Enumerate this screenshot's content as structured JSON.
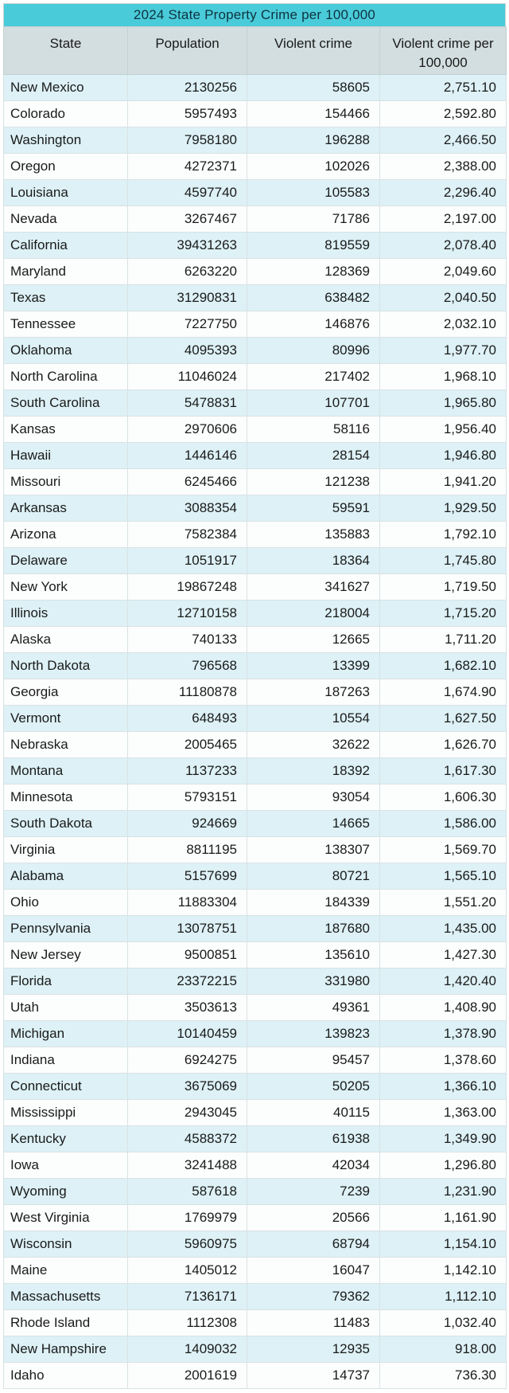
{
  "title": "2024 State Property Crime per 100,000",
  "columns": [
    "State",
    "Population",
    "Violent crime",
    "Violent crime per 100,000"
  ],
  "colors": {
    "title_bg": "#4acbd9",
    "title_text": "#0e3340",
    "header_bg": "#d2dedf",
    "row_alt_bg": "#ddf1f6",
    "row_bg": "#fcfdfd",
    "grid_line": "#d9e2e4",
    "text": "#1a1a1a"
  },
  "chart_data": {
    "type": "table",
    "title": "2024 State Property Crime per 100,000",
    "columns": [
      "State",
      "Population",
      "Violent crime",
      "Violent crime per 100,000"
    ],
    "rows": [
      [
        "New Mexico",
        2130256,
        58605,
        "2,751.10"
      ],
      [
        "Colorado",
        5957493,
        154466,
        "2,592.80"
      ],
      [
        "Washington",
        7958180,
        196288,
        "2,466.50"
      ],
      [
        "Oregon",
        4272371,
        102026,
        "2,388.00"
      ],
      [
        "Louisiana",
        4597740,
        105583,
        "2,296.40"
      ],
      [
        "Nevada",
        3267467,
        71786,
        "2,197.00"
      ],
      [
        "California",
        39431263,
        819559,
        "2,078.40"
      ],
      [
        "Maryland",
        6263220,
        128369,
        "2,049.60"
      ],
      [
        "Texas",
        31290831,
        638482,
        "2,040.50"
      ],
      [
        "Tennessee",
        7227750,
        146876,
        "2,032.10"
      ],
      [
        "Oklahoma",
        4095393,
        80996,
        "1,977.70"
      ],
      [
        "North Carolina",
        11046024,
        217402,
        "1,968.10"
      ],
      [
        "South Carolina",
        5478831,
        107701,
        "1,965.80"
      ],
      [
        "Kansas",
        2970606,
        58116,
        "1,956.40"
      ],
      [
        "Hawaii",
        1446146,
        28154,
        "1,946.80"
      ],
      [
        "Missouri",
        6245466,
        121238,
        "1,941.20"
      ],
      [
        "Arkansas",
        3088354,
        59591,
        "1,929.50"
      ],
      [
        "Arizona",
        7582384,
        135883,
        "1,792.10"
      ],
      [
        "Delaware",
        1051917,
        18364,
        "1,745.80"
      ],
      [
        "New York",
        19867248,
        341627,
        "1,719.50"
      ],
      [
        "Illinois",
        12710158,
        218004,
        "1,715.20"
      ],
      [
        "Alaska",
        740133,
        12665,
        "1,711.20"
      ],
      [
        "North Dakota",
        796568,
        13399,
        "1,682.10"
      ],
      [
        "Georgia",
        11180878,
        187263,
        "1,674.90"
      ],
      [
        "Vermont",
        648493,
        10554,
        "1,627.50"
      ],
      [
        "Nebraska",
        2005465,
        32622,
        "1,626.70"
      ],
      [
        "Montana",
        1137233,
        18392,
        "1,617.30"
      ],
      [
        "Minnesota",
        5793151,
        93054,
        "1,606.30"
      ],
      [
        "South Dakota",
        924669,
        14665,
        "1,586.00"
      ],
      [
        "Virginia",
        8811195,
        138307,
        "1,569.70"
      ],
      [
        "Alabama",
        5157699,
        80721,
        "1,565.10"
      ],
      [
        "Ohio",
        11883304,
        184339,
        "1,551.20"
      ],
      [
        "Pennsylvania",
        13078751,
        187680,
        "1,435.00"
      ],
      [
        "New Jersey",
        9500851,
        135610,
        "1,427.30"
      ],
      [
        "Florida",
        23372215,
        331980,
        "1,420.40"
      ],
      [
        "Utah",
        3503613,
        49361,
        "1,408.90"
      ],
      [
        "Michigan",
        10140459,
        139823,
        "1,378.90"
      ],
      [
        "Indiana",
        6924275,
        95457,
        "1,378.60"
      ],
      [
        "Connecticut",
        3675069,
        50205,
        "1,366.10"
      ],
      [
        "Mississippi",
        2943045,
        40115,
        "1,363.00"
      ],
      [
        "Kentucky",
        4588372,
        61938,
        "1,349.90"
      ],
      [
        "Iowa",
        3241488,
        42034,
        "1,296.80"
      ],
      [
        "Wyoming",
        587618,
        7239,
        "1,231.90"
      ],
      [
        "West Virginia",
        1769979,
        20566,
        "1,161.90"
      ],
      [
        "Wisconsin",
        5960975,
        68794,
        "1,154.10"
      ],
      [
        "Maine",
        1405012,
        16047,
        "1,142.10"
      ],
      [
        "Massachusetts",
        7136171,
        79362,
        "1,112.10"
      ],
      [
        "Rhode Island",
        1112308,
        11483,
        "1,032.40"
      ],
      [
        "New Hampshire",
        1409032,
        12935,
        "918.00"
      ],
      [
        "Idaho",
        2001619,
        14737,
        "736.30"
      ]
    ]
  }
}
